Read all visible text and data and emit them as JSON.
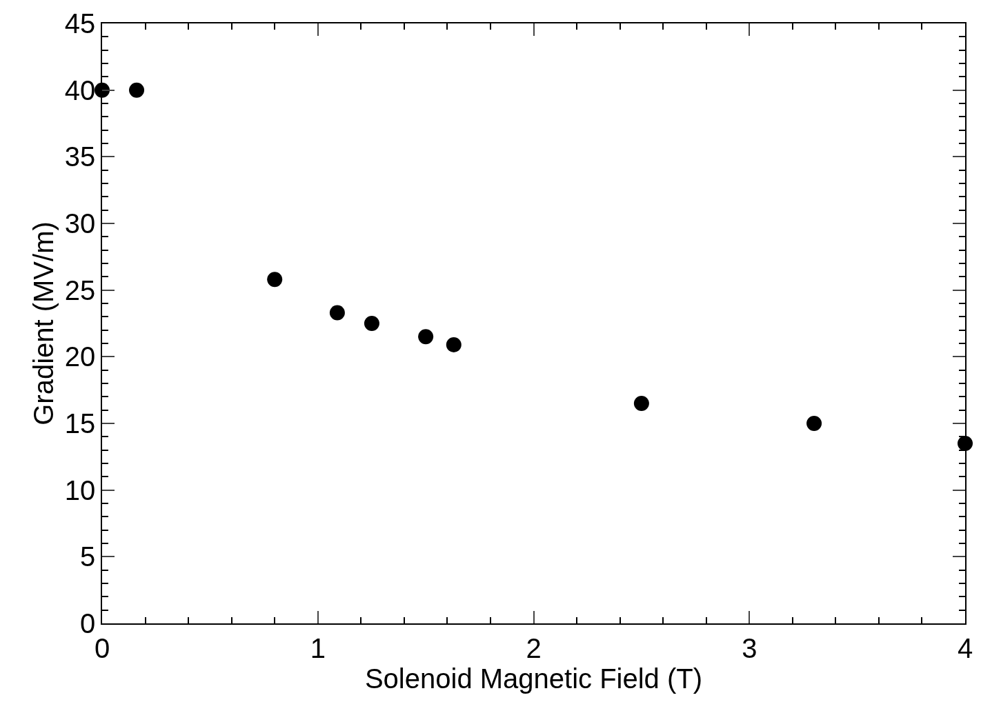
{
  "chart_data": {
    "type": "scatter",
    "xlabel": "Solenoid Magnetic Field (T)",
    "ylabel": "Gradient (MV/m)",
    "x": [
      0,
      0.16,
      0.8,
      1.09,
      1.25,
      1.5,
      1.63,
      2.5,
      3.3,
      4.0
    ],
    "values": [
      40,
      40,
      25.8,
      23.3,
      22.5,
      21.5,
      20.9,
      16.5,
      15.0,
      13.5
    ],
    "color": "#000000",
    "marker": "circle",
    "xlim": [
      0,
      4
    ],
    "xticks": [
      0,
      1,
      2,
      3,
      4
    ],
    "ylim": [
      0,
      45
    ],
    "yticks": [
      0,
      5,
      10,
      15,
      20,
      25,
      30,
      35,
      40,
      45
    ]
  }
}
